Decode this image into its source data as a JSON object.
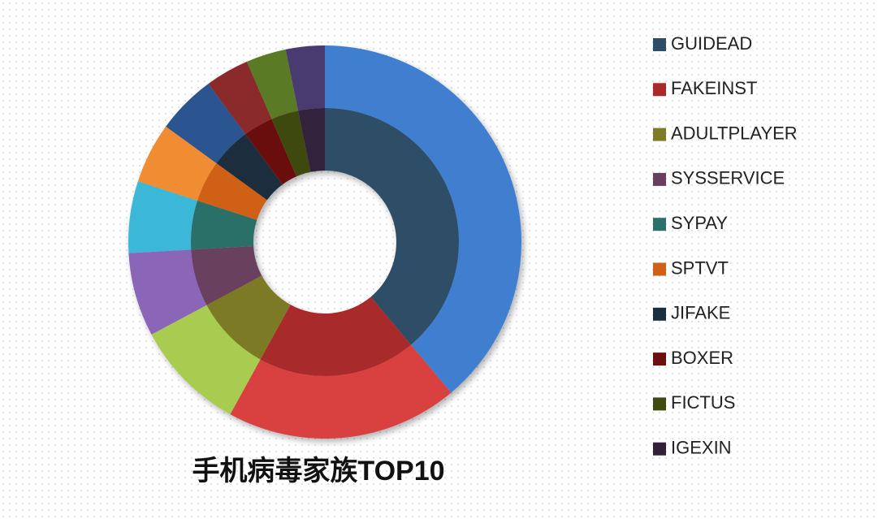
{
  "chart_data": {
    "type": "doughnut",
    "title": "手机病毒家族TOP10",
    "categories": [
      "GUIDEAD",
      "FAKEINST",
      "ADULTPLAYER",
      "SYSSERVICE",
      "SYPAY",
      "SPTVT",
      "JIFAKE",
      "BOXER",
      "FICTUS",
      "IGEXIN"
    ],
    "values": [
      38.9,
      19.1,
      9.2,
      6.9,
      5.9,
      5.0,
      4.9,
      3.6,
      3.3,
      3.2
    ],
    "colors": [
      "#2e4d66",
      "#a82a2a",
      "#7d7a28",
      "#6a3f5e",
      "#2c7068",
      "#d06018",
      "#1b2e3e",
      "#6a1010",
      "#3e4a10",
      "#32203a"
    ],
    "outer_colors": [
      "#3f7fd0",
      "#d94040",
      "#a8cc50",
      "#8b65b8",
      "#3bb8d8",
      "#f08c30",
      "#2a5490",
      "#8b2a2a",
      "#5a7a28",
      "#4a3a70"
    ],
    "legend": "right"
  }
}
